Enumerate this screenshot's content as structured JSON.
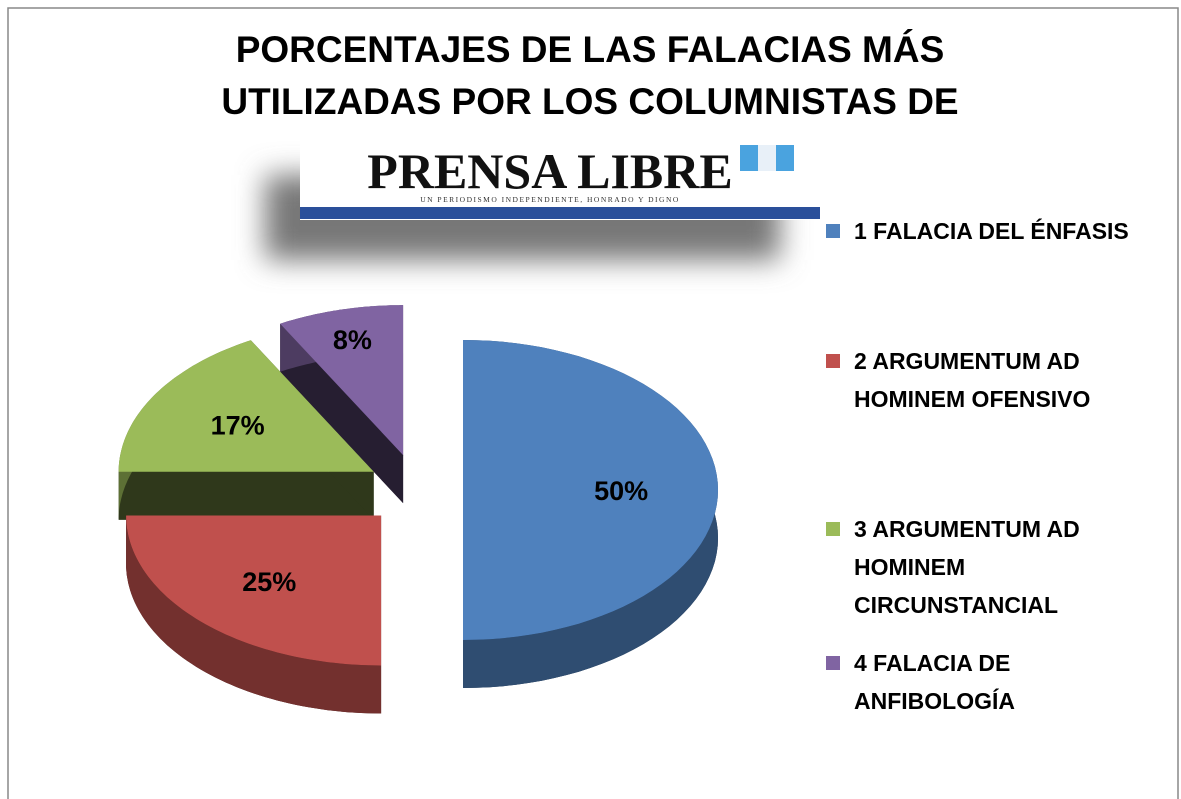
{
  "chart_data": {
    "type": "pie",
    "title": [
      "PORCENTAJES DE LAS FALACIAS MÁS",
      "UTILIZADAS POR LOS COLUMNISTAS DE"
    ],
    "logo_text": "PRENSA LIBRE",
    "logo_tagline": "UN PERIODISMO INDEPENDIENTE, HONRADO Y DIGNO",
    "categories": [
      "1 FALACIA DEL ÉNFASIS",
      "2 ARGUMENTUM AD HOMINEM OFENSIVO",
      "3 ARGUMENTUM AD HOMINEM CIRCUNSTANCIAL",
      "4 FALACIA DE ANFIBOLOGÍA"
    ],
    "values": [
      50,
      25,
      17,
      8
    ],
    "value_labels": [
      "50%",
      "25%",
      "17%",
      "8%"
    ],
    "colors": [
      "#4f81bd",
      "#c0504d",
      "#9bbb59",
      "#8064a2"
    ],
    "legend": "right"
  }
}
